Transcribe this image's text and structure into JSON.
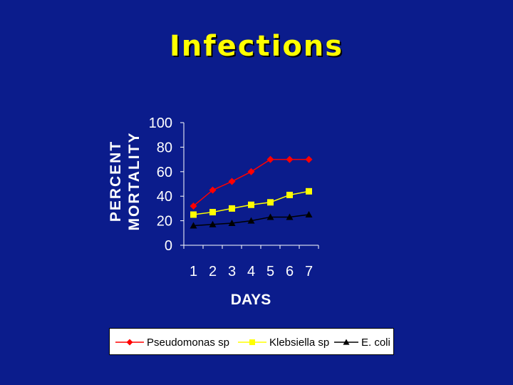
{
  "slide": {
    "title": "Infections"
  },
  "chart_data": {
    "type": "line",
    "title": "",
    "xlabel": "DAYS",
    "ylabel": [
      "PERCENT",
      "MORTALITY"
    ],
    "x": [
      1,
      2,
      3,
      4,
      5,
      6,
      7
    ],
    "xticks": [
      "1",
      "2",
      "3",
      "4",
      "5",
      "6",
      "7"
    ],
    "ylim": [
      0,
      100
    ],
    "yticks": [
      0,
      20,
      40,
      60,
      80,
      100
    ],
    "grid": false,
    "legend_position": "bottom",
    "series": [
      {
        "name": "Pseudomonas sp",
        "color": "#ff0000",
        "marker": "diamond",
        "values": [
          32,
          45,
          52,
          60,
          70,
          70,
          70
        ]
      },
      {
        "name": "Klebsiella sp",
        "color": "#ffff00",
        "marker": "square",
        "values": [
          25,
          27,
          30,
          33,
          35,
          41,
          44
        ]
      },
      {
        "name": "E. coli",
        "color": "#000000",
        "marker": "triangle",
        "values": [
          16,
          17,
          18,
          20,
          23,
          23,
          25
        ]
      }
    ]
  }
}
